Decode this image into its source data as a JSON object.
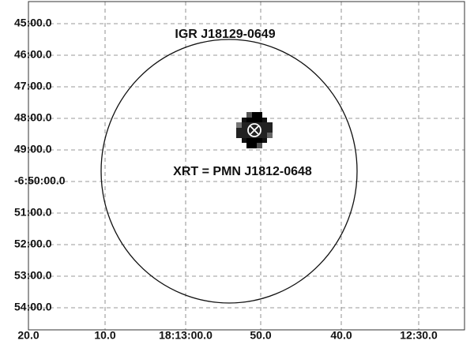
{
  "image": {
    "title": "IGR J18129-0649",
    "source_label": "XRT = PMN J1812-0648",
    "y_axis": {
      "labels": [
        "45:00.0",
        "46:00.0",
        "47:00.0",
        "48:00.0",
        "49:00.0",
        "-6:50:00.0",
        "51:00.0",
        "52:00.0",
        "53:00.0",
        "54:00.0"
      ]
    },
    "x_axis": {
      "labels": [
        "20.0",
        "10.0",
        "18:13:00.0",
        "50.0",
        "40.0",
        "12:30.0"
      ]
    }
  }
}
